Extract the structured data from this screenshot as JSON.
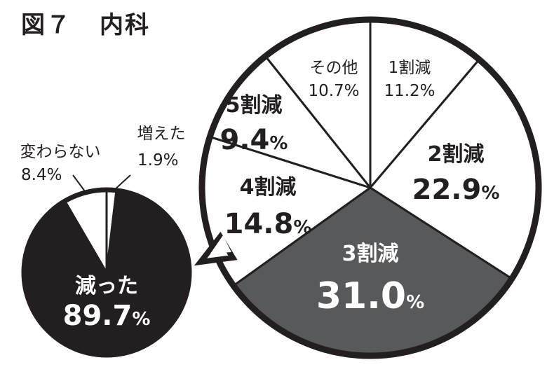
{
  "figure": {
    "number": "図７",
    "subject": "内科"
  },
  "chart_data": [
    {
      "type": "pie",
      "title": "",
      "slices": [
        {
          "label": "減った",
          "value": 89.7,
          "display": "89.7",
          "unit": "%",
          "color": "#231f20"
        },
        {
          "label": "変わらない",
          "value": 8.4,
          "display": "8.4",
          "unit": "%",
          "color": "#ffffff"
        },
        {
          "label": "増えた",
          "value": 1.9,
          "display": "1.9",
          "unit": "%",
          "color": "#ffffff"
        }
      ]
    },
    {
      "type": "pie",
      "title": "",
      "breakdown_of": "減った",
      "slices": [
        {
          "label": "1割減",
          "value": 11.2,
          "display": "11.2",
          "unit": "%",
          "color": "#ffffff"
        },
        {
          "label": "2割減",
          "value": 22.9,
          "display": "22.9",
          "unit": "%",
          "color": "#ffffff"
        },
        {
          "label": "3割減",
          "value": 31.0,
          "display": "31.0",
          "unit": "%",
          "color": "#58595b"
        },
        {
          "label": "4割減",
          "value": 14.8,
          "display": "14.8",
          "unit": "%",
          "color": "#ffffff"
        },
        {
          "label": "5割減",
          "value": 9.4,
          "display": "9.4",
          "unit": "%",
          "color": "#ffffff"
        },
        {
          "label": "その他",
          "value": 10.7,
          "display": "10.7",
          "unit": "%",
          "color": "#ffffff"
        }
      ]
    }
  ]
}
